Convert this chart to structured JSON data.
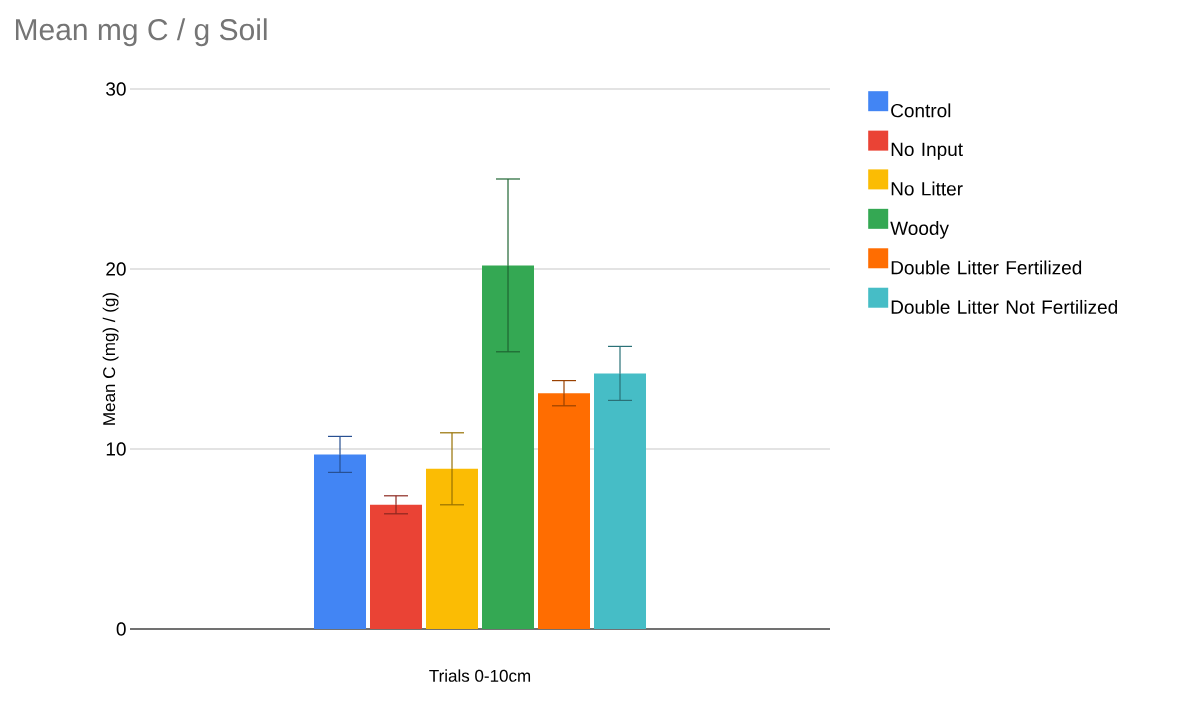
{
  "chart_data": {
    "type": "bar",
    "title": "Mean mg C / g Soil",
    "xlabel": "Trials 0-10cm",
    "ylabel": "Mean C (mg) / (g)",
    "categories": [
      null
    ],
    "series": [
      {
        "name": "Control",
        "color": "#4285f4",
        "values": [
          9.7
        ],
        "errors": [
          1.0
        ]
      },
      {
        "name": "No Input",
        "color": "#ea4335",
        "values": [
          6.9
        ],
        "errors": [
          0.5
        ]
      },
      {
        "name": "No Litter",
        "color": "#fbbc04",
        "values": [
          8.9
        ],
        "errors": [
          2.0
        ]
      },
      {
        "name": "Woody",
        "color": "#34a853",
        "values": [
          20.2
        ],
        "errors": [
          4.8
        ]
      },
      {
        "name": "Double Litter Fertilized",
        "color": "#ff6d01",
        "values": [
          13.1
        ],
        "errors": [
          0.7
        ]
      },
      {
        "name": "Double Litter Not Fertilized",
        "color": "#46bdc6",
        "values": [
          14.2
        ],
        "errors": [
          1.5
        ]
      }
    ],
    "ylim": [
      0,
      30
    ],
    "yticks": [
      0,
      10,
      20,
      30
    ],
    "grid": "y",
    "legend": "right"
  }
}
